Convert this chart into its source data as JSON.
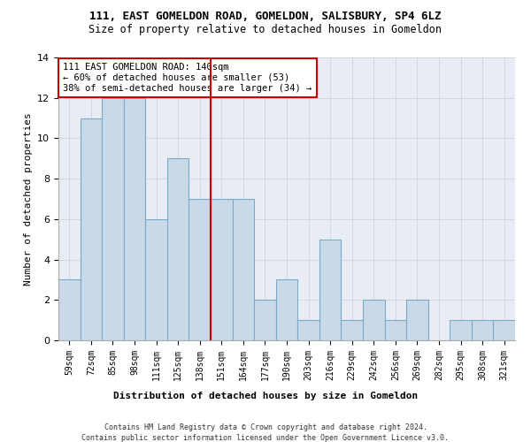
{
  "title": "111, EAST GOMELDON ROAD, GOMELDON, SALISBURY, SP4 6LZ",
  "subtitle": "Size of property relative to detached houses in Gomeldon",
  "xlabel_bottom": "Distribution of detached houses by size in Gomeldon",
  "ylabel": "Number of detached properties",
  "categories": [
    "59sqm",
    "72sqm",
    "85sqm",
    "98sqm",
    "111sqm",
    "125sqm",
    "138sqm",
    "151sqm",
    "164sqm",
    "177sqm",
    "190sqm",
    "203sqm",
    "216sqm",
    "229sqm",
    "242sqm",
    "256sqm",
    "269sqm",
    "282sqm",
    "295sqm",
    "308sqm",
    "321sqm"
  ],
  "values": [
    3,
    11,
    12,
    12,
    6,
    9,
    7,
    7,
    7,
    2,
    3,
    1,
    5,
    1,
    2,
    1,
    2,
    0,
    1,
    1,
    1
  ],
  "bar_color": "#c9d9e8",
  "bar_edgecolor": "#7aaac8",
  "bar_linewidth": 0.8,
  "reference_line_index": 6.5,
  "reference_line_color": "#cc0000",
  "annotation_text_line1": "111 EAST GOMELDON ROAD: 140sqm",
  "annotation_text_line2": "← 60% of detached houses are smaller (53)",
  "annotation_text_line3": "38% of semi-detached houses are larger (34) →",
  "annotation_box_color": "#cc0000",
  "grid_color": "#c8d0dc",
  "bg_color": "#e8edf5",
  "footer_line1": "Contains HM Land Registry data © Crown copyright and database right 2024.",
  "footer_line2": "Contains public sector information licensed under the Open Government Licence v3.0.",
  "ylim": [
    0,
    14
  ],
  "yticks": [
    0,
    2,
    4,
    6,
    8,
    10,
    12,
    14
  ],
  "title_fontsize": 9,
  "subtitle_fontsize": 8.5,
  "ylabel_fontsize": 8,
  "tick_fontsize": 7,
  "annot_fontsize": 7.5,
  "footer_fontsize": 6,
  "xlabel_bottom_fontsize": 8
}
